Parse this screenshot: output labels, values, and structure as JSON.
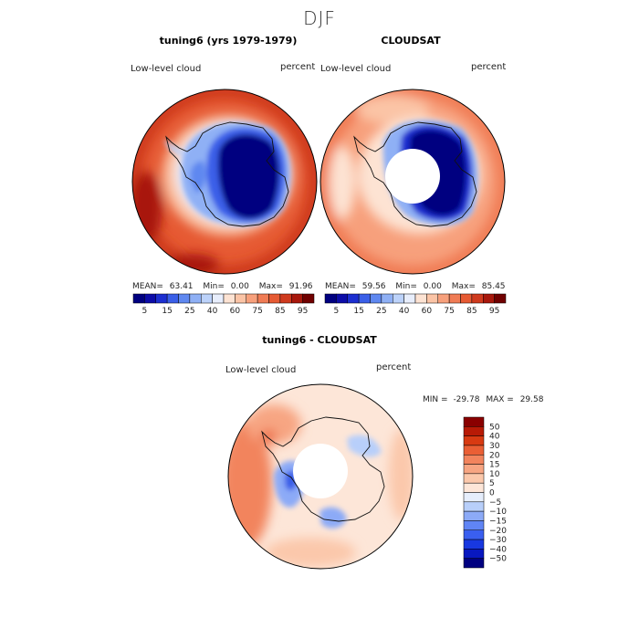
{
  "figure": {
    "season": "DJF"
  },
  "panels": {
    "model": {
      "title": "tuning6 (yrs 1979-1979)",
      "variable": "Low-level cloud",
      "units": "percent",
      "stats": {
        "mean_label": "MEAN=",
        "mean": "63.41",
        "min_label": "Min=",
        "min": "0.00",
        "max_label": "Max=",
        "max": "91.96"
      }
    },
    "obs": {
      "title": "CLOUDSAT",
      "variable": "Low-level cloud",
      "units": "percent",
      "stats": {
        "mean_label": "MEAN=",
        "mean": "59.56",
        "min_label": "Min=",
        "min": "0.00",
        "max_label": "Max=",
        "max": "85.45"
      }
    },
    "diff": {
      "title": "tuning6 - CLOUDSAT",
      "variable": "Low-level cloud",
      "units": "percent",
      "stats": {
        "min_label": "MIN =",
        "min": "-29.78",
        "max_label": "MAX =",
        "max": "29.58"
      }
    }
  },
  "chart_data": [
    {
      "type": "heatmap",
      "projection": "south-polar-stereographic",
      "title": "tuning6 (yrs 1979-1979)",
      "variable": "Low-level cloud",
      "units": "percent",
      "mean": 63.41,
      "min": 0.0,
      "max": 91.96,
      "colorbar_levels": [
        5,
        10,
        15,
        20,
        25,
        30,
        40,
        50,
        60,
        70,
        75,
        80,
        85,
        90,
        95
      ],
      "colorbar_tick_labels": [
        "5",
        "15",
        "25",
        "40",
        "60",
        "75",
        "85",
        "95"
      ],
      "colors": [
        "#000080",
        "#0c0ca8",
        "#1c2fd0",
        "#3a5fe8",
        "#5f88f0",
        "#8fb0f5",
        "#bcd2fa",
        "#e8eefc",
        "#fde3d3",
        "#fbc4a6",
        "#f7a07c",
        "#f07c55",
        "#e65a33",
        "#cf3a1e",
        "#a8180c",
        "#700000"
      ]
    },
    {
      "type": "heatmap",
      "projection": "south-polar-stereographic",
      "title": "CLOUDSAT",
      "variable": "Low-level cloud",
      "units": "percent",
      "mean": 59.56,
      "min": 0.0,
      "max": 85.45,
      "colorbar_levels": [
        5,
        10,
        15,
        20,
        25,
        30,
        40,
        50,
        60,
        70,
        75,
        80,
        85,
        90,
        95
      ],
      "colorbar_tick_labels": [
        "5",
        "15",
        "25",
        "40",
        "60",
        "75",
        "85",
        "95"
      ],
      "colors": [
        "#000080",
        "#0c0ca8",
        "#1c2fd0",
        "#3a5fe8",
        "#5f88f0",
        "#8fb0f5",
        "#bcd2fa",
        "#e8eefc",
        "#fde3d3",
        "#fbc4a6",
        "#f7a07c",
        "#f07c55",
        "#e65a33",
        "#cf3a1e",
        "#a8180c",
        "#700000"
      ]
    },
    {
      "type": "heatmap",
      "projection": "south-polar-stereographic",
      "title": "tuning6 - CLOUDSAT",
      "variable": "Low-level cloud",
      "units": "percent",
      "min": -29.78,
      "max": 29.58,
      "colorbar_levels": [
        -50,
        -40,
        -30,
        -20,
        -15,
        -10,
        -5,
        0,
        5,
        10,
        15,
        20,
        30,
        40,
        50
      ],
      "colorbar_tick_labels": [
        "50",
        "40",
        "30",
        "20",
        "15",
        "10",
        "5",
        "0",
        "−5",
        "−10",
        "−15",
        "−20",
        "−30",
        "−40",
        "−50"
      ],
      "colors": [
        "#000080",
        "#0818c0",
        "#1838e0",
        "#3a5ff0",
        "#6085f5",
        "#8caaf7",
        "#b8cffa",
        "#e6eefc",
        "#fde6d8",
        "#fbc8ab",
        "#f7a582",
        "#f2845d",
        "#ea5f35",
        "#d83a12",
        "#b81a06",
        "#8a0000"
      ]
    }
  ]
}
